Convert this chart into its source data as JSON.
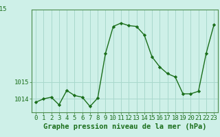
{
  "x": [
    0,
    1,
    2,
    3,
    4,
    5,
    6,
    7,
    8,
    9,
    10,
    11,
    12,
    13,
    14,
    15,
    16,
    17,
    18,
    19,
    20,
    21,
    22,
    23
  ],
  "y": [
    1013.8,
    1014.0,
    1014.1,
    1013.65,
    1014.5,
    1014.2,
    1014.1,
    1013.55,
    1014.05,
    1016.7,
    1018.3,
    1018.5,
    1018.35,
    1018.3,
    1017.8,
    1016.5,
    1015.9,
    1015.5,
    1015.3,
    1014.3,
    1014.3,
    1014.45,
    1016.7,
    1018.4
  ],
  "line_color": "#1a6e1a",
  "marker_color": "#1a6e1a",
  "bg_color": "#cef0e8",
  "grid_color": "#a8d8cc",
  "xlabel": "Graphe pression niveau de la mer (hPa)",
  "ylim_min": 1013.2,
  "ylim_max": 1019.3,
  "xlim_min": -0.5,
  "xlim_max": 23.5,
  "xlabel_fontsize": 7.5,
  "tick_fontsize": 6.5,
  "border_color": "#4a8a4a",
  "ytick_labels": [
    "1014",
    "1015"
  ],
  "ytick_vals": [
    1014.0,
    1015.0
  ]
}
